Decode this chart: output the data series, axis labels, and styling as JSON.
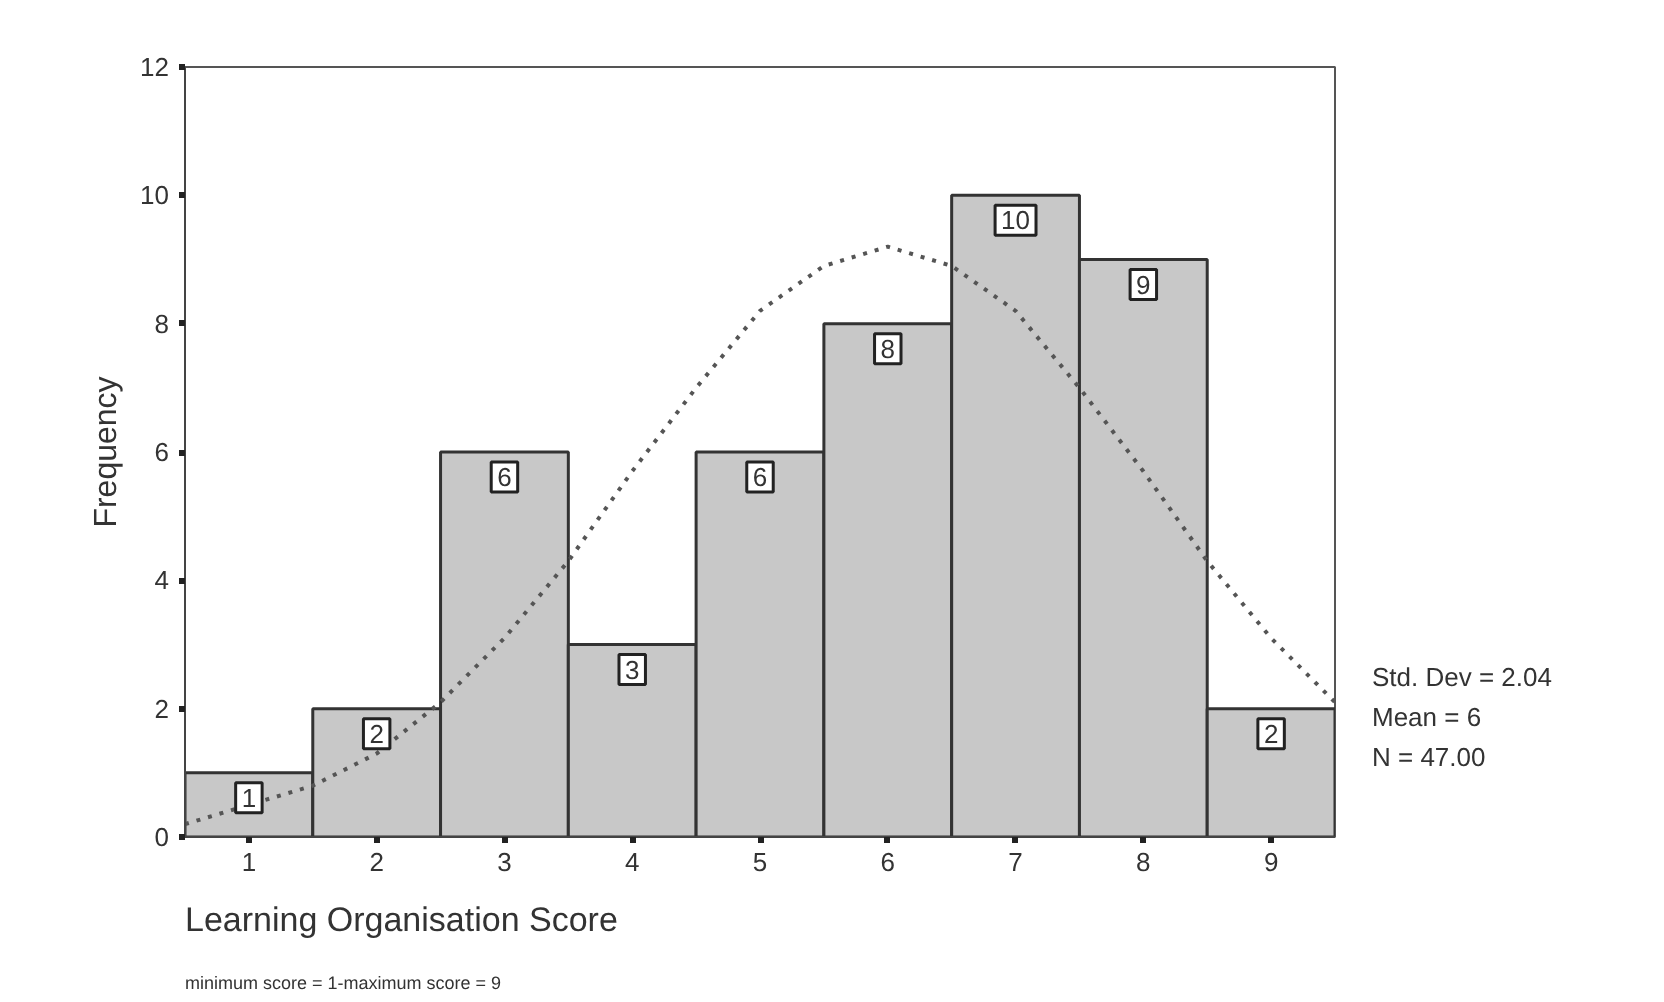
{
  "chart_data": {
    "type": "histogram",
    "xlabel": "Learning Organisation Score",
    "ylabel": "Frequency",
    "bins": [
      0.5,
      1.5,
      2.5,
      3.5,
      4.5,
      5.5,
      6.5,
      7.5,
      8.5,
      9.5
    ],
    "values": [
      1,
      2,
      6,
      3,
      6,
      8,
      10,
      9,
      2
    ],
    "color": "#c8c8c8",
    "value_labels": [
      "1",
      "2",
      "6",
      "3",
      "6",
      "8",
      "10",
      "9",
      "2"
    ],
    "series": [
      {
        "type": "line",
        "color": "#555555",
        "line_style": "dotted",
        "x": [
          0.5,
          1.5,
          2,
          2.5,
          3,
          3.5,
          4,
          4.5,
          5,
          5.5,
          6,
          6.5,
          7,
          7.5,
          8,
          8.5,
          9,
          9.5
        ],
        "values": [
          0.2,
          0.8,
          1.3,
          2.1,
          3.1,
          4.3,
          5.7,
          7.0,
          8.2,
          8.9,
          9.2,
          8.9,
          8.2,
          7.0,
          5.7,
          4.3,
          3.1,
          2.1
        ]
      }
    ],
    "xlim": [
      0.5,
      9.5
    ],
    "xticks": [
      1,
      2,
      3,
      4,
      5,
      6,
      7,
      8,
      9
    ],
    "ylim": [
      0,
      12
    ],
    "yticks": [
      0,
      2,
      4,
      6,
      8,
      10,
      12
    ],
    "grid": false,
    "annotations": [
      "Std. Dev = 2.04",
      "Mean = 6",
      "N = 47.00",
      "minimum score = 1-maximum score = 9"
    ]
  }
}
